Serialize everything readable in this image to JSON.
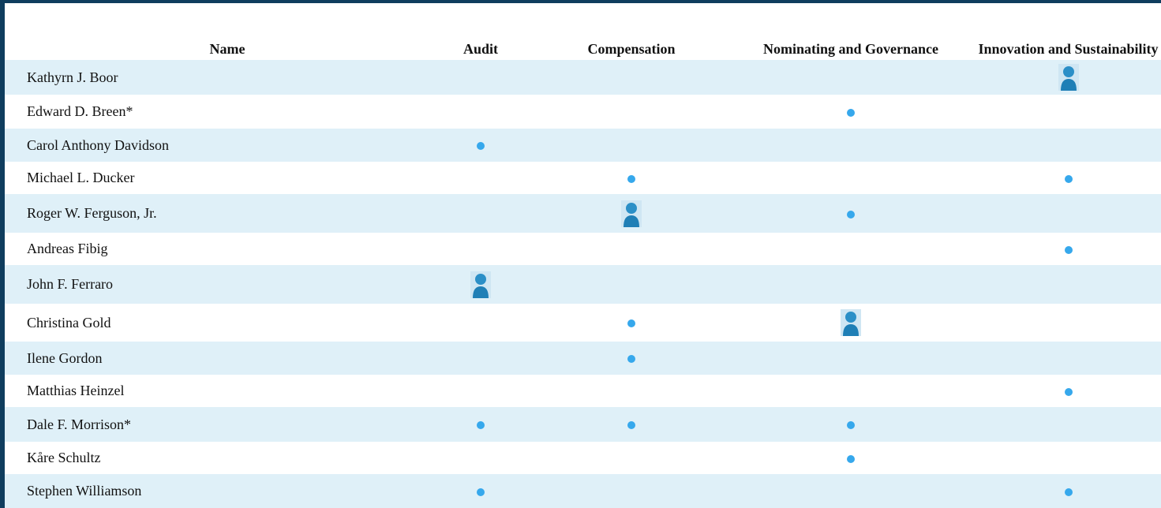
{
  "table": {
    "header": [
      "Name",
      "Audit",
      "Compensation",
      "Nominating and Governance",
      "Innovation and Sustainability"
    ],
    "rows": [
      "Kathyrn J. Boor",
      "Edward D. Breen*",
      "Carol Anthony Davidson",
      "Michael L. Ducker",
      "Roger W. Ferguson, Jr.",
      "Andreas Fibig",
      "John F. Ferraro",
      "Christina Gold",
      "Ilene Gordon",
      "Matthias Heinzel",
      "Dale F. Morrison*",
      "Kåre Schultz",
      "Stephen Williamson"
    ]
  }
}
